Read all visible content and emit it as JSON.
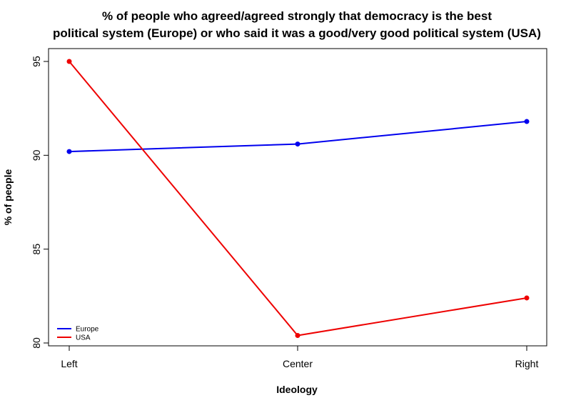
{
  "chart_data": {
    "type": "line",
    "title_lines": [
      "% of people who agreed/agreed strongly that democracy is the best",
      "political system (Europe) or who said it was a good/very good political system (USA)"
    ],
    "xlabel": "Ideology",
    "ylabel": "% of people",
    "categories": [
      "Left",
      "Center",
      "Right"
    ],
    "ylim": [
      80,
      95
    ],
    "yticks": [
      "80",
      "85",
      "90",
      "95"
    ],
    "grid": false,
    "legend_position": "bottom-left",
    "series": [
      {
        "name": "Europe",
        "color": "#0000ee",
        "values": [
          90.2,
          90.6,
          91.8
        ]
      },
      {
        "name": "USA",
        "color": "#ee0000",
        "values": [
          95.0,
          80.4,
          82.4
        ]
      }
    ]
  }
}
